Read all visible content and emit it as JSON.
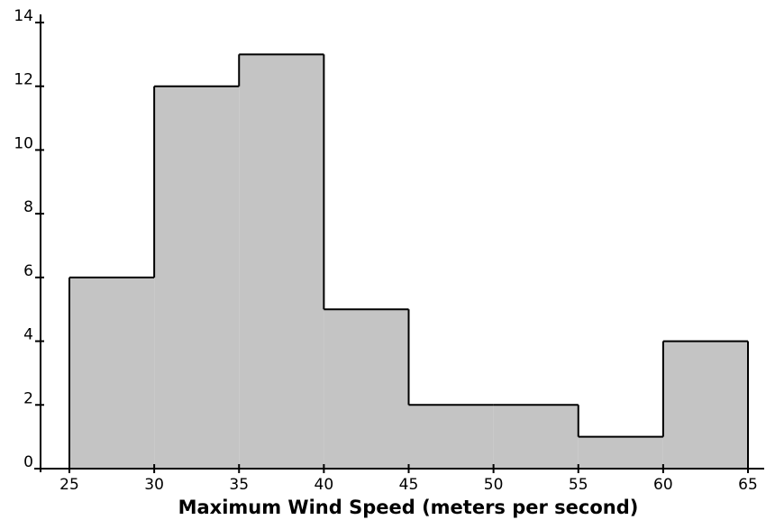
{
  "chart_data": {
    "type": "bar",
    "title": "",
    "xlabel": "Maximum Wind Speed (meters per second)",
    "ylabel": "",
    "bins": [
      {
        "x0": 25,
        "x1": 30,
        "count": 6
      },
      {
        "x0": 30,
        "x1": 35,
        "count": 12
      },
      {
        "x0": 35,
        "x1": 40,
        "count": 13
      },
      {
        "x0": 40,
        "x1": 45,
        "count": 5
      },
      {
        "x0": 45,
        "x1": 50,
        "count": 2
      },
      {
        "x0": 50,
        "x1": 55,
        "count": 2
      },
      {
        "x0": 55,
        "x1": 60,
        "count": 1
      },
      {
        "x0": 60,
        "x1": 65,
        "count": 4
      }
    ],
    "xticks": [
      "25",
      "30",
      "35",
      "40",
      "45",
      "50",
      "55",
      "60",
      "65"
    ],
    "yticks": [
      "0",
      "2",
      "4",
      "6",
      "8",
      "10",
      "12",
      "14"
    ],
    "xlim": [
      25,
      65
    ],
    "ylim": [
      0,
      14
    ],
    "grid": false,
    "colors": {
      "fill": "#c4c4c4",
      "line": "#000000"
    }
  }
}
